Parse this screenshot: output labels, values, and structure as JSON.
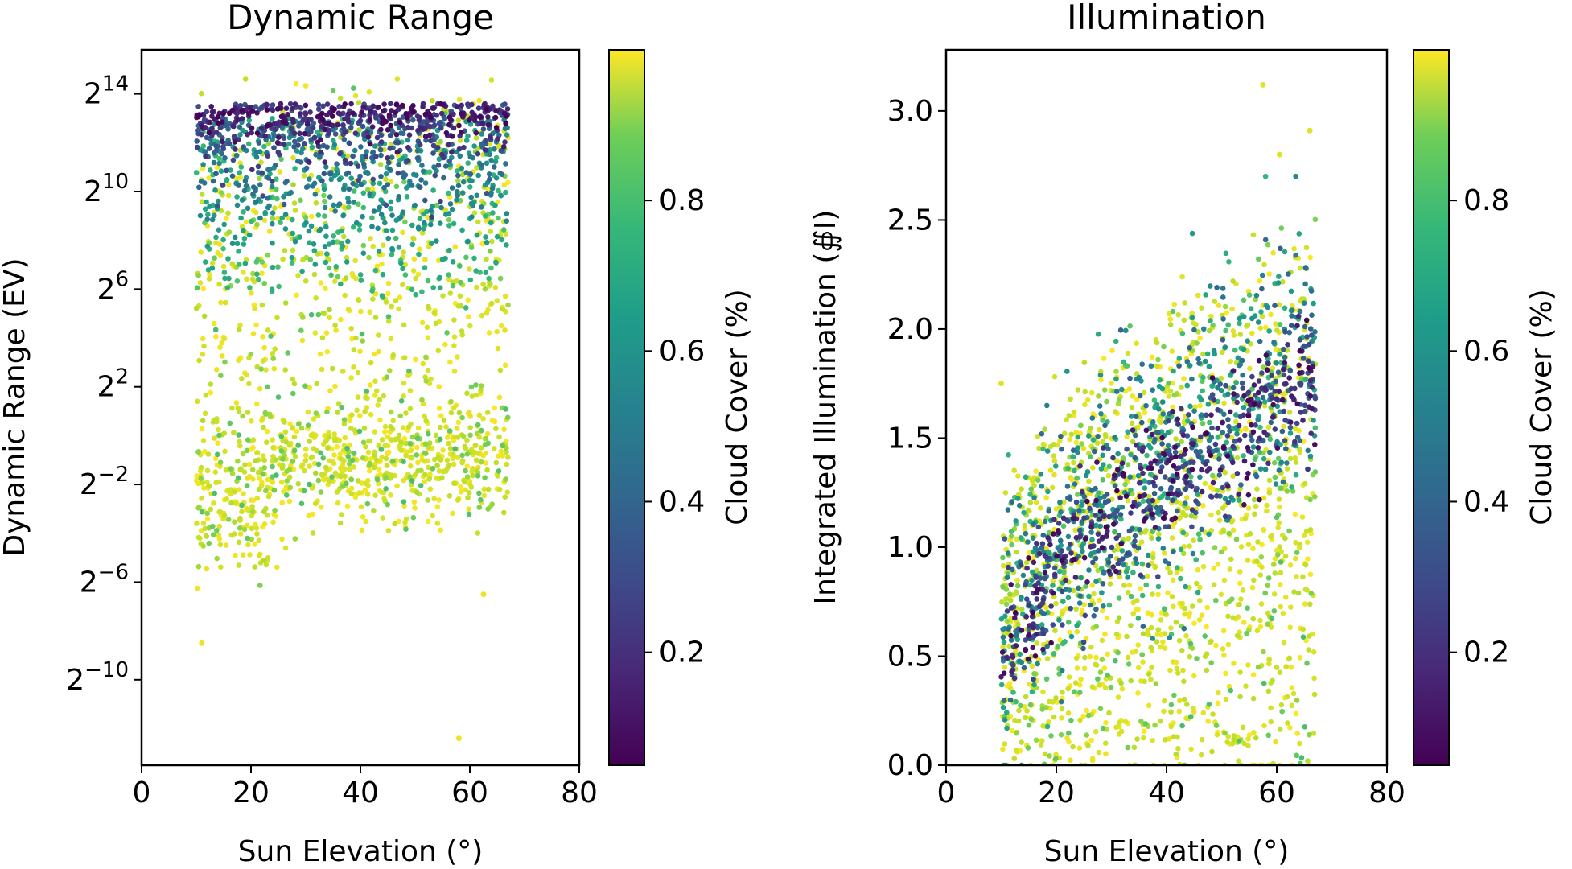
{
  "chart_data": [
    {
      "type": "scatter",
      "title": "Dynamic Range",
      "xlabel": "Sun Elevation (°)",
      "ylabel": "Dynamic Range (EV)",
      "xlim": [
        0,
        80
      ],
      "ylim_log2": [
        -13.5,
        15.8
      ],
      "x_ticks": [
        0,
        20,
        40,
        60,
        80
      ],
      "y_ticks_log2": [
        14,
        10,
        6,
        2,
        -2,
        -6,
        -10
      ],
      "y_tick_base": "2",
      "color_variable": "Cloud Cover (%)",
      "colormap": "viridis",
      "color_range": [
        0.05,
        1.0
      ],
      "colorbar_ticks": [
        0.2,
        0.4,
        0.6,
        0.8
      ],
      "colorbar_label": "Cloud Cover (%)",
      "x_range_of_points": [
        10,
        67
      ],
      "trend": "Clear-sky samples (low cloud cover) cluster near 2^12–2^14 EV; overcast samples spread lower, down to about 2^-2–2^-8 EV",
      "outliers_log2": [
        [
          58,
          -12.4
        ],
        [
          62.5,
          -6.5
        ],
        [
          11,
          -8.5
        ]
      ]
    },
    {
      "type": "scatter",
      "title": "Illumination",
      "xlabel": "Sun Elevation (°)",
      "ylabel": "Integrated Illumination (∯I)",
      "xlim": [
        0,
        80
      ],
      "ylim": [
        0.0,
        3.28
      ],
      "x_ticks": [
        0,
        20,
        40,
        60,
        80
      ],
      "y_ticks": [
        0.0,
        0.5,
        1.0,
        1.5,
        2.0,
        2.5,
        3.0
      ],
      "color_variable": "Cloud Cover (%)",
      "colormap": "viridis",
      "color_range": [
        0.05,
        1.0
      ],
      "colorbar_ticks": [
        0.2,
        0.4,
        0.6,
        0.8
      ],
      "colorbar_label": "Cloud Cover (%)",
      "x_range_of_points": [
        10,
        67
      ],
      "trend": "Clear-sky illumination rises with sun elevation from ~0.8 to ~1.8; cloudy samples vary from 0 to ~2.8",
      "outliers": [
        [
          57.5,
          3.12
        ],
        [
          66,
          2.91
        ],
        [
          60.5,
          2.8
        ],
        [
          10,
          1.75
        ]
      ]
    }
  ],
  "text": {
    "left_title": "Dynamic Range",
    "right_title": "Illumination",
    "left_xlabel": "Sun Elevation (°)",
    "right_xlabel": "Sun Elevation (°)",
    "left_ylabel": "Dynamic Range (EV)",
    "right_ylabel": "Integrated Illumination (∯I)",
    "left_cbar_label": "Cloud Cover (%)",
    "right_cbar_label": "Cloud Cover (%)"
  }
}
